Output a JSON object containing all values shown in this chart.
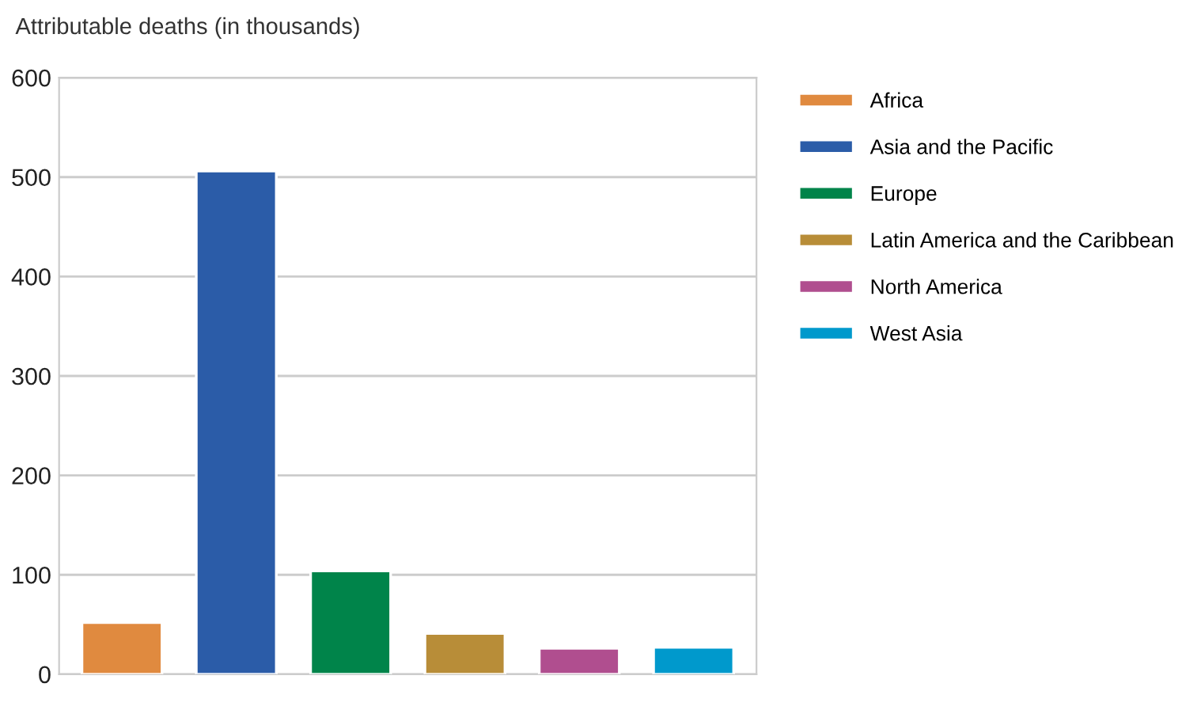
{
  "chart_data": {
    "type": "bar",
    "ylabel": "Attributable deaths (in thousands)",
    "categories": [
      null,
      null,
      null,
      null,
      null,
      null
    ],
    "series": [
      {
        "name": "Africa",
        "color": "#e08a3f",
        "values": [
          52,
          null,
          null,
          null,
          null,
          null
        ]
      },
      {
        "name": "Asia and the Pacific",
        "color": "#2b5ca8",
        "values": [
          null,
          506,
          null,
          null,
          null,
          null
        ]
      },
      {
        "name": "Europe",
        "color": "#00844a",
        "values": [
          null,
          null,
          104,
          null,
          null,
          null
        ]
      },
      {
        "name": "Latin America and the Caribbean",
        "color": "#b88d38",
        "values": [
          null,
          null,
          null,
          41,
          null,
          null
        ]
      },
      {
        "name": "North America",
        "color": "#b04e8f",
        "values": [
          null,
          null,
          null,
          null,
          26,
          null
        ]
      },
      {
        "name": "West Asia",
        "color": "#0099cc",
        "values": [
          null,
          null,
          null,
          null,
          null,
          27
        ]
      }
    ],
    "ylim": [
      0,
      600
    ],
    "yticks": [
      0,
      100,
      200,
      300,
      400,
      500,
      600
    ],
    "grid": "y",
    "legend": "right"
  }
}
